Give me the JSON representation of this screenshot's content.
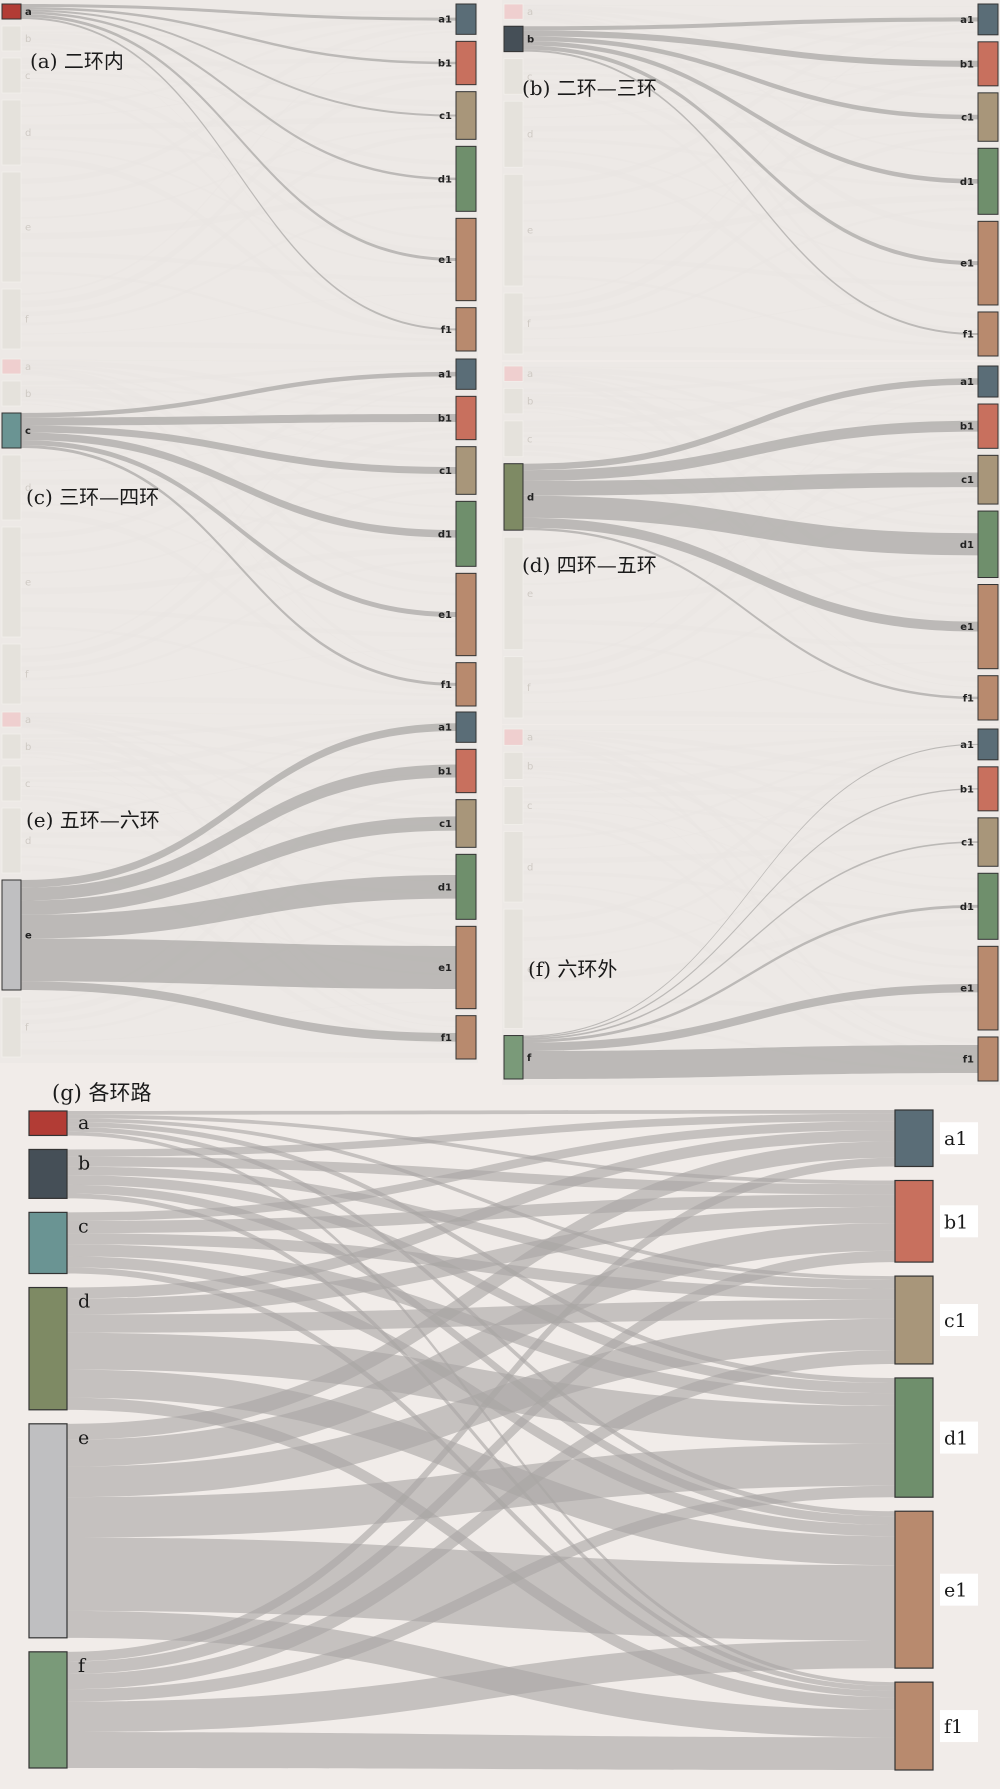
{
  "colors": {
    "a": "#b23c35",
    "b": "#454f57",
    "c": "#6a9493",
    "d": "#7e8a64",
    "e": "#bfbfc1",
    "f": "#7a9a79",
    "a1": "#5a6d77",
    "b1": "#c8705e",
    "c1": "#a8967a",
    "d1": "#6f8f6c",
    "e1": "#b88a6e",
    "f1": "#b88a6e",
    "link": "#b3b0ae",
    "faded_node": "#e5e2dc",
    "faded_link": "#e9e5e2",
    "panel_bg": "#ede9e6"
  },
  "panels": [
    {
      "id": "a",
      "title": "(a) 二环内",
      "sources": [
        {
          "name": "a",
          "label": "a",
          "value": 3
        },
        {
          "name": "b",
          "label": "b",
          "value": 5
        },
        {
          "name": "c",
          "label": "c",
          "value": 7
        },
        {
          "name": "d",
          "label": "d",
          "value": 13
        },
        {
          "name": "e",
          "label": "e",
          "value": 22
        },
        {
          "name": "f",
          "label": "f",
          "value": 12
        }
      ],
      "targets": [
        {
          "name": "a1",
          "label": "a1",
          "value": 7
        },
        {
          "name": "b1",
          "label": "b1",
          "value": 10
        },
        {
          "name": "c1",
          "label": "c1",
          "value": 11
        },
        {
          "name": "d1",
          "label": "d1",
          "value": 15
        },
        {
          "name": "e1",
          "label": "e1",
          "value": 19
        },
        {
          "name": "f1",
          "label": "f1",
          "value": 10
        }
      ],
      "active": "a",
      "flows": {
        "a1": 0.6,
        "b1": 0.5,
        "c1": 0.4,
        "d1": 0.5,
        "e1": 0.6,
        "f1": 0.4
      }
    },
    {
      "id": "b",
      "title": "(b) 二环—三环",
      "sources": [
        {
          "name": "a",
          "label": "a",
          "value": 3
        },
        {
          "name": "b",
          "label": "b",
          "value": 5
        },
        {
          "name": "c",
          "label": "c",
          "value": 7
        },
        {
          "name": "d",
          "label": "d",
          "value": 13
        },
        {
          "name": "e",
          "label": "e",
          "value": 22
        },
        {
          "name": "f",
          "label": "f",
          "value": 12
        }
      ],
      "targets": [
        {
          "name": "a1",
          "label": "a1",
          "value": 7
        },
        {
          "name": "b1",
          "label": "b1",
          "value": 10
        },
        {
          "name": "c1",
          "label": "c1",
          "value": 11
        },
        {
          "name": "d1",
          "label": "d1",
          "value": 15
        },
        {
          "name": "e1",
          "label": "e1",
          "value": 19
        },
        {
          "name": "f1",
          "label": "f1",
          "value": 10
        }
      ],
      "active": "b",
      "flows": {
        "a1": 0.8,
        "b1": 1.2,
        "c1": 0.9,
        "d1": 0.9,
        "e1": 0.8,
        "f1": 0.4
      }
    },
    {
      "id": "c",
      "title": "(c) 三环—四环",
      "sources": [
        {
          "name": "a",
          "label": "a",
          "value": 3
        },
        {
          "name": "b",
          "label": "b",
          "value": 5
        },
        {
          "name": "c",
          "label": "c",
          "value": 7
        },
        {
          "name": "d",
          "label": "d",
          "value": 13
        },
        {
          "name": "e",
          "label": "e",
          "value": 22
        },
        {
          "name": "f",
          "label": "f",
          "value": 12
        }
      ],
      "targets": [
        {
          "name": "a1",
          "label": "a1",
          "value": 7
        },
        {
          "name": "b1",
          "label": "b1",
          "value": 10
        },
        {
          "name": "c1",
          "label": "c1",
          "value": 11
        },
        {
          "name": "d1",
          "label": "d1",
          "value": 15
        },
        {
          "name": "e1",
          "label": "e1",
          "value": 19
        },
        {
          "name": "f1",
          "label": "f1",
          "value": 10
        }
      ],
      "active": "c",
      "flows": {
        "a1": 0.9,
        "b1": 1.6,
        "c1": 1.4,
        "d1": 1.5,
        "e1": 1.0,
        "f1": 0.6
      }
    },
    {
      "id": "d",
      "title": "(d) 四环—五环",
      "sources": [
        {
          "name": "a",
          "label": "a",
          "value": 3
        },
        {
          "name": "b",
          "label": "b",
          "value": 5
        },
        {
          "name": "c",
          "label": "c",
          "value": 7
        },
        {
          "name": "d",
          "label": "d",
          "value": 13
        },
        {
          "name": "e",
          "label": "e",
          "value": 22
        },
        {
          "name": "f",
          "label": "f",
          "value": 12
        }
      ],
      "targets": [
        {
          "name": "a1",
          "label": "a1",
          "value": 7
        },
        {
          "name": "b1",
          "label": "b1",
          "value": 10
        },
        {
          "name": "c1",
          "label": "c1",
          "value": 11
        },
        {
          "name": "d1",
          "label": "d1",
          "value": 15
        },
        {
          "name": "e1",
          "label": "e1",
          "value": 19
        },
        {
          "name": "f1",
          "label": "f1",
          "value": 10
        }
      ],
      "active": "d",
      "flows": {
        "a1": 1.3,
        "b1": 2.2,
        "c1": 3.0,
        "d1": 4.5,
        "e1": 2.0,
        "f1": 0.5
      }
    },
    {
      "id": "e",
      "title": "(e) 五环—六环",
      "sources": [
        {
          "name": "a",
          "label": "a",
          "value": 3
        },
        {
          "name": "b",
          "label": "b",
          "value": 5
        },
        {
          "name": "c",
          "label": "c",
          "value": 7
        },
        {
          "name": "d",
          "label": "d",
          "value": 13
        },
        {
          "name": "e",
          "label": "e",
          "value": 22
        },
        {
          "name": "f",
          "label": "f",
          "value": 12
        }
      ],
      "targets": [
        {
          "name": "a1",
          "label": "a1",
          "value": 7
        },
        {
          "name": "b1",
          "label": "b1",
          "value": 10
        },
        {
          "name": "c1",
          "label": "c1",
          "value": 11
        },
        {
          "name": "d1",
          "label": "d1",
          "value": 15
        },
        {
          "name": "e1",
          "label": "e1",
          "value": 19
        },
        {
          "name": "f1",
          "label": "f1",
          "value": 10
        }
      ],
      "active": "e",
      "flows": {
        "a1": 1.8,
        "b1": 3.0,
        "c1": 3.3,
        "d1": 5.5,
        "e1": 10.0,
        "f1": 2.0
      }
    },
    {
      "id": "f",
      "title": "(f)  六环外",
      "sources": [
        {
          "name": "a",
          "label": "a",
          "value": 3
        },
        {
          "name": "b",
          "label": "b",
          "value": 5
        },
        {
          "name": "c",
          "label": "c",
          "value": 7
        },
        {
          "name": "d",
          "label": "d",
          "value": 13
        },
        {
          "name": "e",
          "label": "e",
          "value": 22
        },
        {
          "name": "f",
          "label": "f",
          "value": 8
        }
      ],
      "targets": [
        {
          "name": "a1",
          "label": "a1",
          "value": 7
        },
        {
          "name": "b1",
          "label": "b1",
          "value": 10
        },
        {
          "name": "c1",
          "label": "c1",
          "value": 11
        },
        {
          "name": "d1",
          "label": "d1",
          "value": 15
        },
        {
          "name": "e1",
          "label": "e1",
          "value": 19
        },
        {
          "name": "f1",
          "label": "f1",
          "value": 10
        }
      ],
      "active": "f",
      "flows": {
        "a1": 0.2,
        "b1": 0.25,
        "c1": 0.3,
        "d1": 0.5,
        "e1": 1.5,
        "f1": 5.0
      }
    }
  ],
  "main": {
    "title": "(g) 各环路",
    "sources": [
      {
        "name": "a",
        "label": "a",
        "value": 4
      },
      {
        "name": "b",
        "label": "b",
        "value": 8
      },
      {
        "name": "c",
        "label": "c",
        "value": 10
      },
      {
        "name": "d",
        "label": "d",
        "value": 20
      },
      {
        "name": "e",
        "label": "e",
        "value": 35
      },
      {
        "name": "f",
        "label": "f",
        "value": 19
      }
    ],
    "targets": [
      {
        "name": "a1",
        "label": "a1",
        "value": 9
      },
      {
        "name": "b1",
        "label": "b1",
        "value": 13
      },
      {
        "name": "c1",
        "label": "c1",
        "value": 14
      },
      {
        "name": "d1",
        "label": "d1",
        "value": 19
      },
      {
        "name": "e1",
        "label": "e1",
        "value": 25
      },
      {
        "name": "f1",
        "label": "f1",
        "value": 14
      }
    ],
    "links": [
      [
        "a",
        "a1",
        0.6
      ],
      [
        "a",
        "b1",
        0.6
      ],
      [
        "a",
        "c1",
        0.6
      ],
      [
        "a",
        "d1",
        0.8
      ],
      [
        "a",
        "e1",
        0.8
      ],
      [
        "a",
        "f1",
        0.6
      ],
      [
        "b",
        "a1",
        1.2
      ],
      [
        "b",
        "b1",
        1.6
      ],
      [
        "b",
        "c1",
        1.4
      ],
      [
        "b",
        "d1",
        1.6
      ],
      [
        "b",
        "e1",
        1.4
      ],
      [
        "b",
        "f1",
        0.8
      ],
      [
        "c",
        "a1",
        1.4
      ],
      [
        "c",
        "b1",
        2.0
      ],
      [
        "c",
        "c1",
        1.8
      ],
      [
        "c",
        "d1",
        2.0
      ],
      [
        "c",
        "e1",
        1.8
      ],
      [
        "c",
        "f1",
        1.0
      ],
      [
        "d",
        "a1",
        1.8
      ],
      [
        "d",
        "b1",
        2.6
      ],
      [
        "d",
        "c1",
        3.0
      ],
      [
        "d",
        "d1",
        6.0
      ],
      [
        "d",
        "e1",
        4.6
      ],
      [
        "d",
        "f1",
        2.0
      ],
      [
        "e",
        "a1",
        2.6
      ],
      [
        "e",
        "b1",
        4.4
      ],
      [
        "e",
        "c1",
        5.0
      ],
      [
        "e",
        "d1",
        6.6
      ],
      [
        "e",
        "e1",
        12.0
      ],
      [
        "e",
        "f1",
        4.4
      ],
      [
        "f",
        "a1",
        1.4
      ],
      [
        "f",
        "b1",
        1.8
      ],
      [
        "f",
        "c1",
        2.2
      ],
      [
        "f",
        "d1",
        1.8
      ],
      [
        "f",
        "e1",
        4.4
      ],
      [
        "f",
        "f1",
        5.2
      ]
    ]
  }
}
